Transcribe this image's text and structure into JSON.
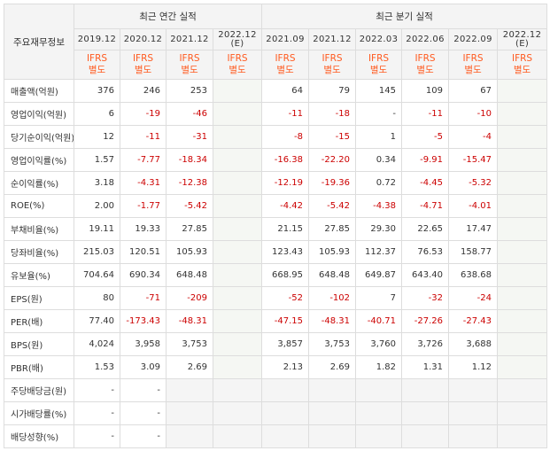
{
  "table": {
    "corner_label": "주요재무정보",
    "group_annual": "최근 연간 실적",
    "group_quarterly": "최근 분기 실적",
    "annual_periods": [
      "2019.12",
      "2020.12",
      "2021.12",
      "2022.12"
    ],
    "annual_estimate_mark": "(E)",
    "quarterly_periods": [
      "2021.09",
      "2021.12",
      "2022.03",
      "2022.06",
      "2022.09",
      "2022.12"
    ],
    "quarterly_estimate_mark": "(E)",
    "basis_line1": "IFRS",
    "basis_line2": "별도",
    "rows": [
      {
        "label": "매출액(억원)",
        "annual": [
          "376",
          "246",
          "253"
        ],
        "quarterly": [
          "64",
          "79",
          "145",
          "109",
          "67"
        ]
      },
      {
        "label": "영업이익(억원)",
        "annual": [
          "6",
          "-19",
          "-46"
        ],
        "quarterly": [
          "-11",
          "-18",
          "-",
          "-11",
          "-10"
        ]
      },
      {
        "label": "당기순이익(억원)",
        "annual": [
          "12",
          "-11",
          "-31"
        ],
        "quarterly": [
          "-8",
          "-15",
          "1",
          "-5",
          "-4"
        ]
      },
      {
        "label": "영업이익률(%)",
        "annual": [
          "1.57",
          "-7.77",
          "-18.34"
        ],
        "quarterly": [
          "-16.38",
          "-22.20",
          "0.34",
          "-9.91",
          "-15.47"
        ]
      },
      {
        "label": "순이익률(%)",
        "annual": [
          "3.18",
          "-4.31",
          "-12.38"
        ],
        "quarterly": [
          "-12.19",
          "-19.36",
          "0.72",
          "-4.45",
          "-5.32"
        ]
      },
      {
        "label": "ROE(%)",
        "annual": [
          "2.00",
          "-1.77",
          "-5.42"
        ],
        "quarterly": [
          "-4.42",
          "-5.42",
          "-4.38",
          "-4.71",
          "-4.01"
        ]
      },
      {
        "label": "부채비율(%)",
        "annual": [
          "19.11",
          "19.33",
          "27.85"
        ],
        "quarterly": [
          "21.15",
          "27.85",
          "29.30",
          "22.65",
          "17.47"
        ]
      },
      {
        "label": "당좌비율(%)",
        "annual": [
          "215.03",
          "120.51",
          "105.93"
        ],
        "quarterly": [
          "123.43",
          "105.93",
          "112.37",
          "76.53",
          "158.77"
        ]
      },
      {
        "label": "유보율(%)",
        "annual": [
          "704.64",
          "690.34",
          "648.48"
        ],
        "quarterly": [
          "668.95",
          "648.48",
          "649.87",
          "643.40",
          "638.68"
        ]
      },
      {
        "label": "EPS(원)",
        "annual": [
          "80",
          "-71",
          "-209"
        ],
        "quarterly": [
          "-52",
          "-102",
          "7",
          "-32",
          "-24"
        ]
      },
      {
        "label": "PER(배)",
        "annual": [
          "77.40",
          "-173.43",
          "-48.31"
        ],
        "quarterly": [
          "-47.15",
          "-48.31",
          "-40.71",
          "-27.26",
          "-27.43"
        ]
      },
      {
        "label": "BPS(원)",
        "annual": [
          "4,024",
          "3,958",
          "3,753"
        ],
        "quarterly": [
          "3,857",
          "3,753",
          "3,760",
          "3,726",
          "3,688"
        ]
      },
      {
        "label": "PBR(배)",
        "annual": [
          "1.53",
          "3.09",
          "2.69"
        ],
        "quarterly": [
          "2.13",
          "2.69",
          "1.82",
          "1.31",
          "1.12"
        ]
      },
      {
        "label": "주당배당금(원)",
        "annual": [
          "-",
          "-",
          ""
        ],
        "quarterly": [
          "",
          "",
          "",
          "",
          ""
        ]
      },
      {
        "label": "시가배당률(%)",
        "annual": [
          "-",
          "-",
          ""
        ],
        "quarterly": [
          "",
          "",
          "",
          "",
          ""
        ]
      },
      {
        "label": "배당성향(%)",
        "annual": [
          "-",
          "-",
          ""
        ],
        "quarterly": [
          "",
          "",
          "",
          "",
          ""
        ]
      }
    ],
    "colors": {
      "negative": "#cc0000",
      "ifrs": "#ff5a1f",
      "header_bg": "#f4f4f4",
      "estimate_bg": "#f5f7f3"
    }
  }
}
